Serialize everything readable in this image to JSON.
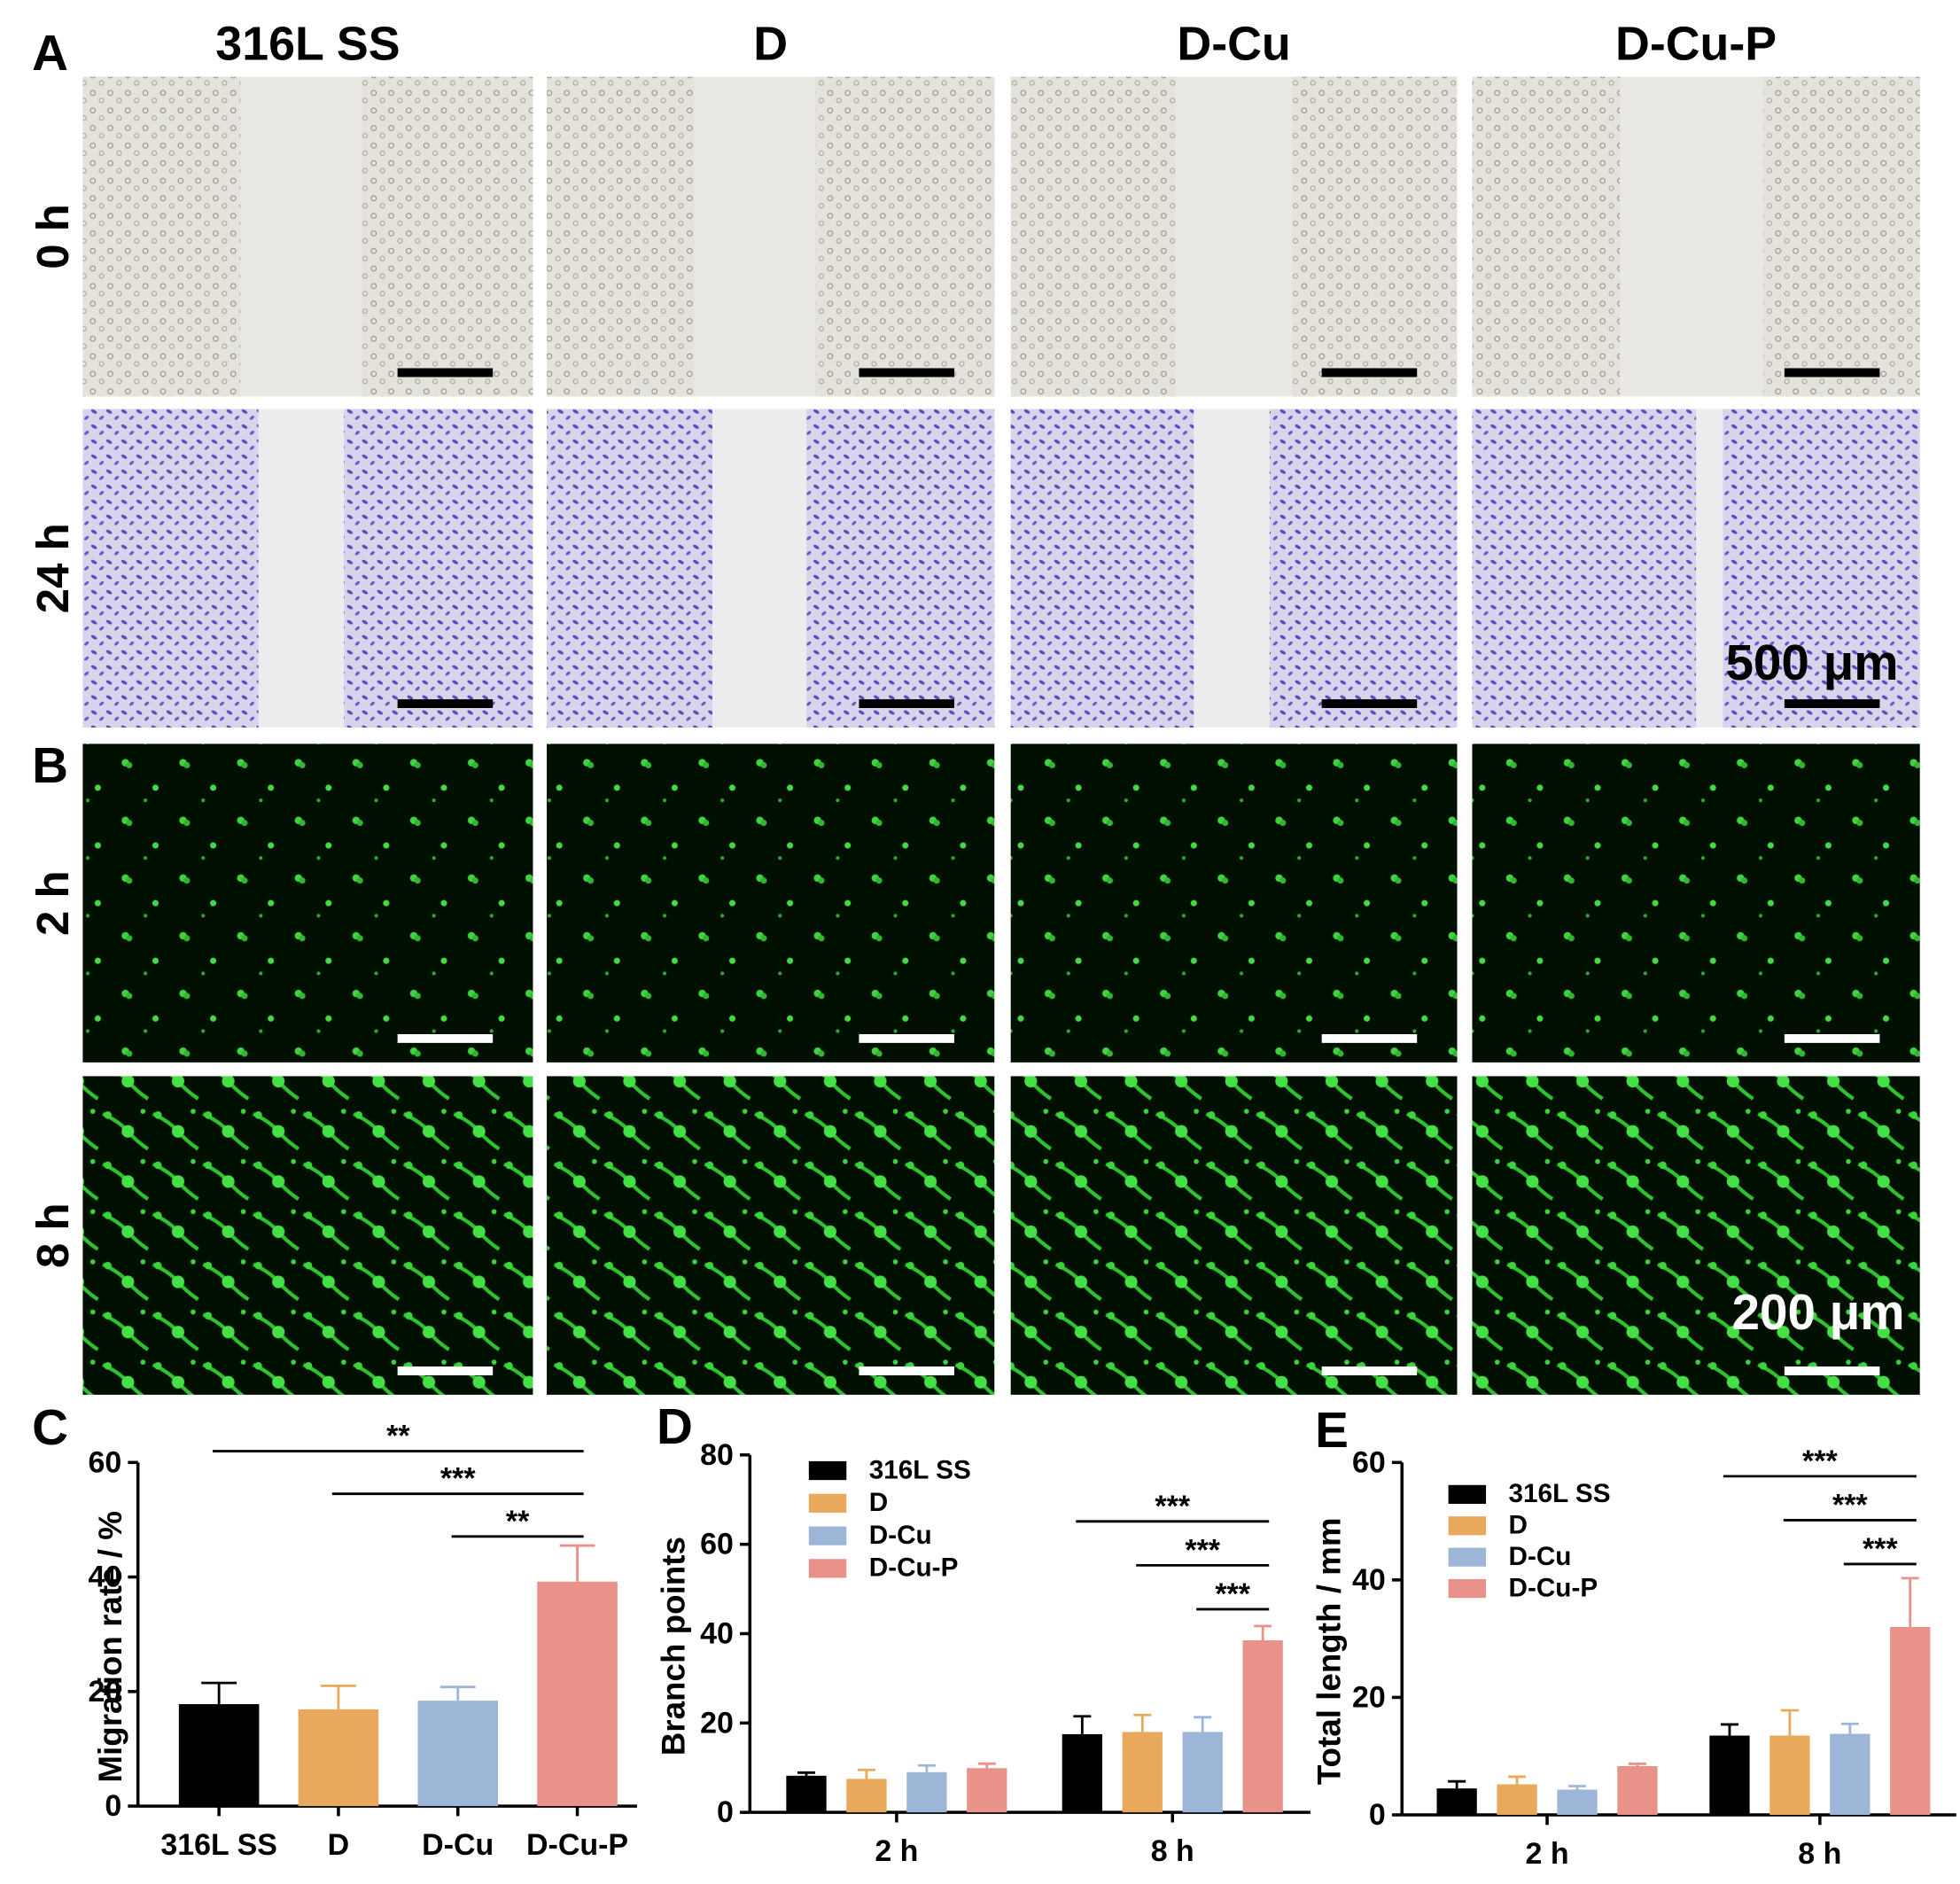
{
  "figure": {
    "panel_labels": [
      "A",
      "B"
    ],
    "columns": [
      "316L SS",
      "D",
      "D-Cu",
      "D-Cu-P"
    ],
    "rows": [
      "0 h",
      "24 h",
      "2 h",
      "8 h"
    ],
    "scale_bars": [
      "500 μm",
      "200 μm"
    ]
  },
  "chart_data": [
    {
      "type": "bar",
      "panel_label": "C",
      "ylabel": "Migration rate / %",
      "categories": [
        "316L SS",
        "D",
        "D-Cu",
        "D-Cu-P"
      ],
      "values": [
        17.8,
        16.9,
        18.4,
        39.2
      ],
      "errors": [
        3.7,
        4.1,
        2.4,
        6.3
      ],
      "colors": [
        "#000000",
        "#e8a95d",
        "#9db6d8",
        "#e8928a"
      ],
      "ylim": [
        0,
        60
      ],
      "yticks": [
        0,
        20,
        40,
        60
      ],
      "annotations": [
        {
          "text": "**",
          "from": "316L SS",
          "to": "D-Cu-P"
        },
        {
          "text": "***",
          "from": "D",
          "to": "D-Cu-P"
        },
        {
          "text": "**",
          "from": "D-Cu",
          "to": "D-Cu-P"
        }
      ]
    },
    {
      "type": "grouped_bar",
      "panel_label": "D",
      "ylabel": "Branch points",
      "categories": [
        "2 h",
        "8 h"
      ],
      "series": [
        {
          "name": "316L SS",
          "color": "#000000",
          "values": [
            8.2,
            17.5
          ],
          "errors": [
            0.7,
            4
          ]
        },
        {
          "name": "D",
          "color": "#e8a95d",
          "values": [
            7.5,
            18
          ],
          "errors": [
            2,
            3.8
          ]
        },
        {
          "name": "D-Cu",
          "color": "#9db6d8",
          "values": [
            9,
            18
          ],
          "errors": [
            1.5,
            3.3
          ]
        },
        {
          "name": "D-Cu-P",
          "color": "#e8928a",
          "values": [
            9.9,
            38.5
          ],
          "errors": [
            1,
            3.2
          ]
        }
      ],
      "ylim": [
        0,
        80
      ],
      "yticks": [
        0,
        20,
        40,
        60,
        80
      ],
      "legend": "upper-left",
      "annotations": [
        {
          "text": "***",
          "group": "8 h",
          "from": "316L SS",
          "to": "D-Cu-P"
        },
        {
          "text": "***",
          "group": "8 h",
          "from": "D",
          "to": "D-Cu-P"
        },
        {
          "text": "***",
          "group": "8 h",
          "from": "D-Cu",
          "to": "D-Cu-P"
        }
      ]
    },
    {
      "type": "grouped_bar",
      "panel_label": "E",
      "ylabel": "Total length / mm",
      "categories": [
        "2 h",
        "8 h"
      ],
      "series": [
        {
          "name": "316L SS",
          "color": "#000000",
          "values": [
            4.5,
            13.5
          ],
          "errors": [
            1.2,
            1.9
          ]
        },
        {
          "name": "D",
          "color": "#e8a95d",
          "values": [
            5.2,
            13.5
          ],
          "errors": [
            1.3,
            4.3
          ]
        },
        {
          "name": "D-Cu",
          "color": "#9db6d8",
          "values": [
            4.3,
            13.8
          ],
          "errors": [
            0.6,
            1.7
          ]
        },
        {
          "name": "D-Cu-P",
          "color": "#e8928a",
          "values": [
            8.3,
            32
          ],
          "errors": [
            0.4,
            8.3
          ]
        }
      ],
      "ylim": [
        0,
        60
      ],
      "yticks": [
        0,
        20,
        40,
        60
      ],
      "legend": "upper-left",
      "annotations": [
        {
          "text": "***",
          "group": "8 h",
          "from": "316L SS",
          "to": "D-Cu-P"
        },
        {
          "text": "***",
          "group": "8 h",
          "from": "D",
          "to": "D-Cu-P"
        },
        {
          "text": "***",
          "group": "8 h",
          "from": "D-Cu",
          "to": "D-Cu-P"
        }
      ]
    }
  ]
}
